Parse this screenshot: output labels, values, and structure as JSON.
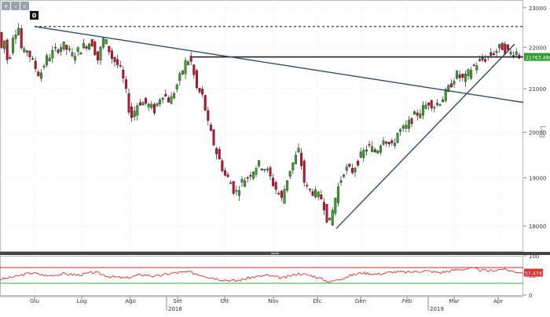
{
  "toolbar": {
    "buttons": [
      {
        "icon": "crosshair-icon",
        "glyph": "+"
      },
      {
        "icon": "zoom-out-icon",
        "glyph": "–"
      },
      {
        "icon": "zoom-in-icon",
        "glyph": "⌕"
      }
    ],
    "indicator_label": "0"
  },
  "colors": {
    "up": "#3aa02b",
    "down": "#c8102e",
    "trendline": "#2e4a6b",
    "resistance": "#222222",
    "dotted": "#222222",
    "rsi": "#e03030",
    "rsi_upper": "#d8252b",
    "rsi_lower": "#35b035",
    "price_tag_bg": "#2e9c2e"
  },
  "chart_data": [
    {
      "type": "candlestick",
      "y_scale": "log",
      "ylim": [
        17500,
        23200
      ],
      "yticks": [
        18000,
        19000,
        20000,
        21000,
        22000,
        23000
      ],
      "y_tick_labels": [
        "18000",
        "19000",
        "20000",
        "21000",
        "22000",
        "23000"
      ],
      "ylabel": "Log",
      "x_months": [
        "Giu",
        "Lug",
        "Ago",
        "Set",
        "Ott",
        "Nov",
        "Dic",
        "Gen",
        "Feb",
        "Mar",
        "Apr"
      ],
      "x_years": [
        "2018",
        "2019"
      ],
      "last_price_label": "21763,48855",
      "last_price": 21763,
      "resistance_level": 21763,
      "dotted_level": 22520,
      "trendline_down": {
        "from": [
          "Giu",
          22520
        ],
        "to": [
          "end",
          20680
        ]
      },
      "trendline_up": {
        "from": [
          "Dic",
          17950
        ],
        "to": [
          "Apr",
          22080
        ]
      },
      "grid": true,
      "path_points": [
        [
          0,
          22850
        ],
        [
          4,
          21900
        ],
        [
          10,
          22200
        ],
        [
          14,
          21500
        ],
        [
          20,
          22300
        ],
        [
          27,
          22520
        ],
        [
          32,
          21800
        ],
        [
          38,
          21950
        ],
        [
          46,
          21600
        ],
        [
          54,
          21300
        ],
        [
          62,
          21700
        ],
        [
          72,
          21900
        ],
        [
          84,
          22050
        ],
        [
          96,
          21800
        ],
        [
          108,
          22000
        ],
        [
          120,
          22150
        ],
        [
          128,
          21700
        ],
        [
          136,
          22250
        ],
        [
          146,
          21750
        ],
        [
          156,
          21500
        ],
        [
          162,
          21100
        ],
        [
          170,
          20300
        ],
        [
          180,
          20700
        ],
        [
          190,
          20650
        ],
        [
          200,
          20500
        ],
        [
          210,
          20900
        ],
        [
          220,
          20700
        ],
        [
          230,
          21150
        ],
        [
          240,
          21650
        ],
        [
          246,
          21700
        ],
        [
          254,
          21000
        ],
        [
          262,
          20800
        ],
        [
          268,
          20200
        ],
        [
          278,
          19600
        ],
        [
          290,
          19050
        ],
        [
          296,
          18950
        ],
        [
          303,
          18650
        ],
        [
          310,
          18900
        ],
        [
          320,
          19050
        ],
        [
          332,
          19300
        ],
        [
          342,
          19200
        ],
        [
          352,
          18850
        ],
        [
          362,
          18550
        ],
        [
          372,
          19150
        ],
        [
          384,
          19600
        ],
        [
          392,
          18800
        ],
        [
          402,
          18700
        ],
        [
          414,
          18550
        ],
        [
          422,
          18000
        ],
        [
          426,
          18250
        ],
        [
          432,
          18700
        ],
        [
          442,
          19200
        ],
        [
          452,
          19150
        ],
        [
          462,
          19450
        ],
        [
          472,
          19700
        ],
        [
          482,
          19550
        ],
        [
          492,
          19900
        ],
        [
          502,
          19650
        ],
        [
          510,
          20000
        ],
        [
          520,
          20100
        ],
        [
          530,
          20350
        ],
        [
          540,
          20500
        ],
        [
          550,
          20700
        ],
        [
          556,
          20600
        ],
        [
          566,
          20750
        ],
        [
          576,
          21050
        ],
        [
          584,
          21350
        ],
        [
          594,
          21200
        ],
        [
          604,
          21500
        ],
        [
          614,
          21650
        ],
        [
          624,
          21750
        ],
        [
          634,
          21900
        ],
        [
          642,
          22020
        ],
        [
          652,
          21850
        ],
        [
          660,
          21900
        ],
        [
          666,
          21750
        ]
      ]
    },
    {
      "type": "line",
      "name": "RSI",
      "ylim": [
        0,
        100
      ],
      "yticks": [
        0,
        50,
        100
      ],
      "y_tick_labels": [
        "0",
        "50",
        "100"
      ],
      "upper_level": 70,
      "lower_level": 30,
      "last_value_label": "57,4743",
      "points": [
        [
          0,
          40
        ],
        [
          20,
          47
        ],
        [
          40,
          57
        ],
        [
          60,
          49
        ],
        [
          80,
          54
        ],
        [
          100,
          51
        ],
        [
          120,
          58
        ],
        [
          140,
          47
        ],
        [
          160,
          43
        ],
        [
          180,
          52
        ],
        [
          200,
          48
        ],
        [
          220,
          56
        ],
        [
          240,
          59
        ],
        [
          260,
          49
        ],
        [
          280,
          40
        ],
        [
          300,
          36
        ],
        [
          320,
          45
        ],
        [
          340,
          50
        ],
        [
          360,
          43
        ],
        [
          380,
          55
        ],
        [
          400,
          48
        ],
        [
          420,
          33
        ],
        [
          440,
          46
        ],
        [
          460,
          57
        ],
        [
          480,
          53
        ],
        [
          500,
          59
        ],
        [
          520,
          58
        ],
        [
          540,
          62
        ],
        [
          560,
          57
        ],
        [
          580,
          64
        ],
        [
          600,
          68
        ],
        [
          620,
          61
        ],
        [
          640,
          66
        ],
        [
          655,
          60
        ],
        [
          666,
          57
        ]
      ]
    }
  ]
}
